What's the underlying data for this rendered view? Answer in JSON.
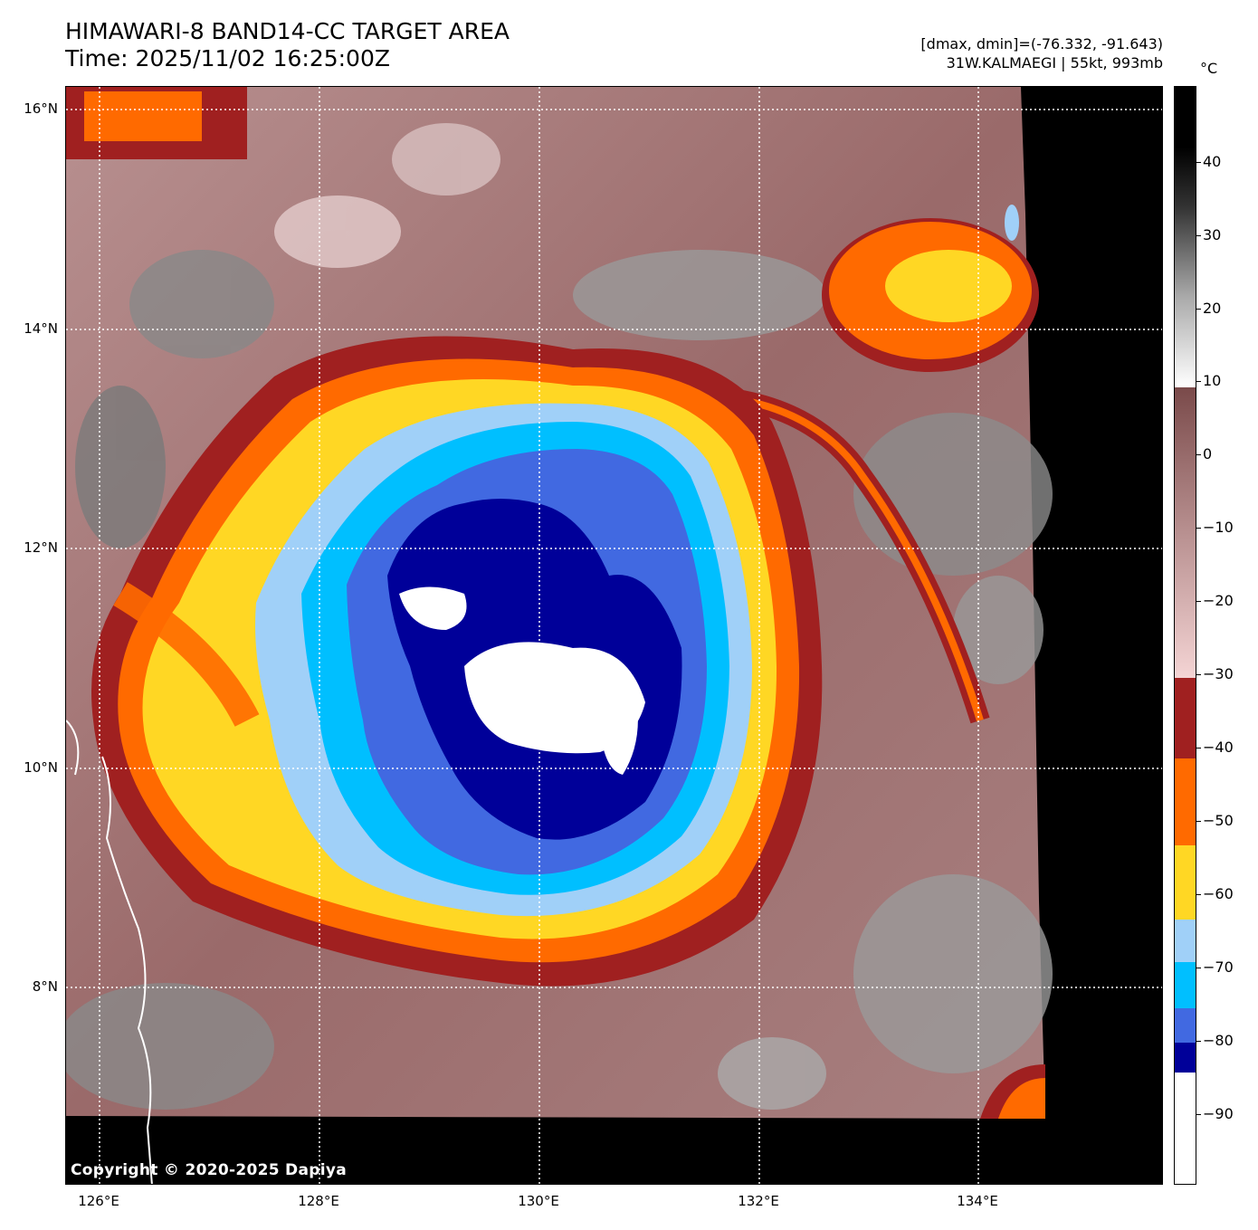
{
  "header": {
    "title": "HIMAWARI-8 BAND14-CC TARGET AREA",
    "time": "Time: 2025/11/02 16:25:00Z",
    "dminmax": "[dmax, dmin]=(-76.332, -91.643)",
    "storm": "31W.KALMAEGI | 55kt, 993mb"
  },
  "map": {
    "lat_labels": [
      "16°N",
      "14°N",
      "12°N",
      "10°N",
      "8°N"
    ],
    "lon_labels": [
      "126°E",
      "128°E",
      "130°E",
      "132°E",
      "134°E"
    ],
    "copyright": "Copyright © 2020-2025 Dapiya"
  },
  "colorbar": {
    "unit": "°C",
    "ticks": [
      "40",
      "30",
      "20",
      "10",
      "0",
      "−10",
      "−20",
      "−30",
      "−40",
      "−50",
      "−60",
      "−70",
      "−80",
      "−90"
    ],
    "colors": {
      "white": "#ffffff",
      "navy": "#000099",
      "royal": "#4169e1",
      "deepsky": "#00bfff",
      "lightsky": "#a0d0f8",
      "yellow": "#ffd724",
      "orange": "#ff6a00",
      "darkred": "#a02020",
      "pink": "#f4d4d4",
      "mauve": "#8a5454"
    }
  }
}
